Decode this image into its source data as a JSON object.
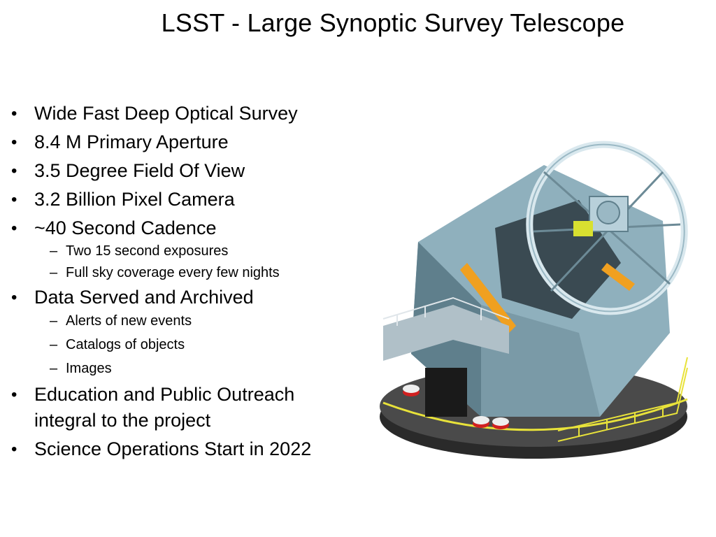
{
  "slide": {
    "title": "LSST - Large Synoptic Survey Telescope",
    "bullets": [
      {
        "text": "Wide Fast Deep Optical Survey"
      },
      {
        "text": "8.4 M Primary Aperture"
      },
      {
        "text": "3.5 Degree Field Of View"
      },
      {
        "text": "3.2 Billion Pixel Camera"
      },
      {
        "text": "~40 Second Cadence",
        "subs": [
          "Two 15 second exposures",
          "Full sky coverage every few nights"
        ]
      },
      {
        "text": "Data Served and Archived",
        "subs": [
          "Alerts of new events",
          "Catalogs of objects",
          "Images"
        ]
      },
      {
        "text": "Education and Public Outreach integral to the project"
      },
      {
        "text": "Science Operations Start in 2022"
      }
    ]
  },
  "colors": {
    "steel": "#8fb0bd",
    "steel_dark": "#5f7f8c",
    "steel_light": "#d9e8ee",
    "yellow_rail": "#e8e23a",
    "orange_accent": "#f0a020",
    "base": "#2a2a2a"
  }
}
